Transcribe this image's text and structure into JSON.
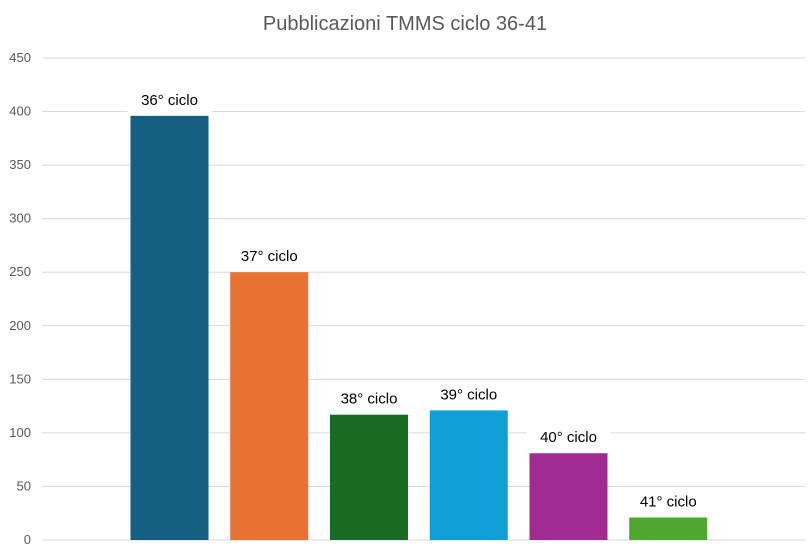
{
  "chart_data": {
    "type": "bar",
    "title": "Pubblicazioni TMMS ciclo 36-41",
    "xlabel": "",
    "ylabel": "",
    "ylim": [
      0,
      450
    ],
    "yticks": [
      0,
      50,
      100,
      150,
      200,
      250,
      300,
      350,
      400,
      450
    ],
    "grid": true,
    "legend": "none",
    "categories": [
      "36° ciclo",
      "37° ciclo",
      "38° ciclo",
      "39° ciclo",
      "40° ciclo",
      "41° ciclo"
    ],
    "values": [
      396,
      250,
      117,
      121,
      81,
      21
    ],
    "colors": [
      "#156082",
      "#E97132",
      "#196B24",
      "#0F9ED5",
      "#A02B93",
      "#4EA72E"
    ]
  }
}
